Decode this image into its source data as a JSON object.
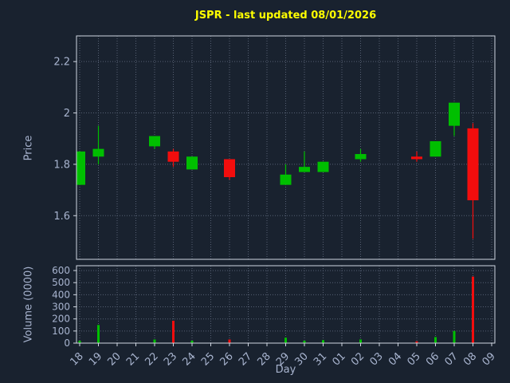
{
  "chart_data": {
    "type": "candlestick+volume",
    "title": "JSPR - last updated 08/01/2026",
    "xlabel": "Day",
    "ylabel_price": "Price",
    "ylabel_volume": "Volume (0000)",
    "price_ticks": [
      1.6,
      1.8,
      2.0,
      2.2
    ],
    "price_tick_labels": [
      "1.6",
      "1.8",
      "2",
      "2.2"
    ],
    "price_range": [
      1.43,
      2.3
    ],
    "volume_ticks": [
      0,
      100,
      200,
      300,
      400,
      500,
      600
    ],
    "volume_range": [
      0,
      640
    ],
    "days": [
      "18",
      "19",
      "20",
      "21",
      "22",
      "23",
      "24",
      "25",
      "26",
      "27",
      "28",
      "29",
      "30",
      "31",
      "01",
      "02",
      "03",
      "04",
      "05",
      "06",
      "07",
      "08",
      "09"
    ],
    "candles": [
      {
        "day": "18",
        "open": 1.72,
        "close": 1.85,
        "high": 1.85,
        "low": 1.72,
        "volume": 20
      },
      {
        "day": "19",
        "open": 1.83,
        "close": 1.86,
        "high": 1.95,
        "low": 1.8,
        "volume": 150
      },
      {
        "day": "22",
        "open": 1.87,
        "close": 1.91,
        "high": 1.91,
        "low": 1.86,
        "volume": 30
      },
      {
        "day": "23",
        "open": 1.85,
        "close": 1.81,
        "high": 1.86,
        "low": 1.79,
        "volume": 185
      },
      {
        "day": "24",
        "open": 1.78,
        "close": 1.83,
        "high": 1.83,
        "low": 1.78,
        "volume": 20
      },
      {
        "day": "26",
        "open": 1.82,
        "close": 1.75,
        "high": 1.82,
        "low": 1.74,
        "volume": 30
      },
      {
        "day": "29",
        "open": 1.72,
        "close": 1.76,
        "high": 1.8,
        "low": 1.72,
        "volume": 45
      },
      {
        "day": "30",
        "open": 1.77,
        "close": 1.79,
        "high": 1.85,
        "low": 1.77,
        "volume": 20
      },
      {
        "day": "31",
        "open": 1.77,
        "close": 1.81,
        "high": 1.81,
        "low": 1.77,
        "volume": 25
      },
      {
        "day": "02",
        "open": 1.82,
        "close": 1.84,
        "high": 1.86,
        "low": 1.81,
        "volume": 30
      },
      {
        "day": "05",
        "open": 1.83,
        "close": 1.82,
        "high": 1.85,
        "low": 1.81,
        "volume": 15
      },
      {
        "day": "06",
        "open": 1.83,
        "close": 1.89,
        "high": 1.89,
        "low": 1.83,
        "volume": 50
      },
      {
        "day": "07",
        "open": 1.95,
        "close": 2.04,
        "high": 2.04,
        "low": 1.91,
        "volume": 100
      },
      {
        "day": "08",
        "open": 1.94,
        "close": 1.66,
        "high": 1.96,
        "low": 1.51,
        "volume": 550
      }
    ],
    "legend_position": "none",
    "grid": true,
    "colors": {
      "up": "#00bf00",
      "down": "#f30d0d",
      "background": "#19222f",
      "title": "#ffff00",
      "axis_text": "#a8b4cf",
      "grid": "#566073",
      "border": "#cfd6e0"
    }
  }
}
